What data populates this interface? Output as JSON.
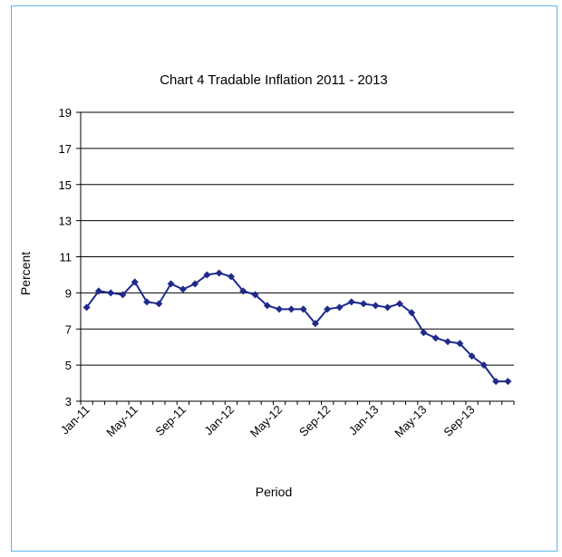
{
  "chart_data": {
    "type": "line",
    "title": "Chart 4 Tradable Inflation 2011 - 2013",
    "xlabel": "Period",
    "ylabel": "Percent",
    "ylim": [
      3,
      19
    ],
    "yticks": [
      3,
      5,
      7,
      9,
      11,
      13,
      15,
      17,
      19
    ],
    "grid": "horizontal",
    "legend": "none",
    "x_tick_labels": [
      "Jan-11",
      "May-11",
      "Sep-11",
      "Jan-12",
      "May-12",
      "Sep-12",
      "Jan-13",
      "May-13",
      "Sep-13"
    ],
    "x": [
      "Jan-11",
      "Feb-11",
      "Mar-11",
      "Apr-11",
      "May-11",
      "Jun-11",
      "Jul-11",
      "Aug-11",
      "Sep-11",
      "Oct-11",
      "Nov-11",
      "Dec-11",
      "Jan-12",
      "Feb-12",
      "Mar-12",
      "Apr-12",
      "May-12",
      "Jun-12",
      "Jul-12",
      "Aug-12",
      "Sep-12",
      "Oct-12",
      "Nov-12",
      "Dec-12",
      "Jan-13",
      "Feb-13",
      "Mar-13",
      "Apr-13",
      "May-13",
      "Jun-13",
      "Jul-13",
      "Aug-13",
      "Sep-13",
      "Oct-13",
      "Nov-13",
      "Dec-13"
    ],
    "series": [
      {
        "values": [
          8.2,
          9.1,
          9.0,
          8.9,
          9.6,
          8.5,
          8.4,
          9.5,
          9.2,
          9.5,
          10.0,
          10.1,
          9.9,
          9.1,
          8.9,
          8.3,
          8.1,
          8.1,
          8.1,
          7.3,
          8.1,
          8.2,
          8.5,
          8.4,
          8.3,
          8.2,
          8.4,
          7.9,
          6.8,
          6.5,
          6.3,
          6.2,
          5.5,
          5.0,
          4.1,
          4.1
        ],
        "color": "#1f2a8a"
      }
    ]
  }
}
